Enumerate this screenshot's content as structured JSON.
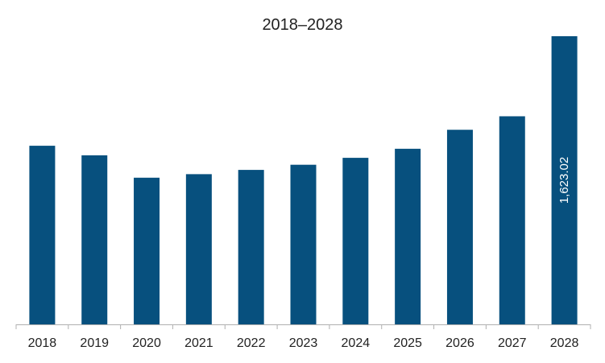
{
  "chart_data": {
    "type": "bar",
    "title": "2018–2028",
    "xlabel": "",
    "ylabel": "",
    "categories": [
      "2018",
      "2019",
      "2020",
      "2021",
      "2022",
      "2023",
      "2024",
      "2025",
      "2026",
      "2027",
      "2028"
    ],
    "values": [
      1006,
      952,
      826,
      846,
      870,
      899,
      938,
      989,
      1096,
      1172,
      1623.02
    ],
    "data_labels": [
      {
        "category": "2028",
        "text": "1,623.02"
      }
    ],
    "ylim": [
      0,
      1700
    ],
    "grid": false,
    "legend": "none",
    "colors": {
      "bar": "#07507E",
      "axis": "#b0b0b0"
    }
  }
}
